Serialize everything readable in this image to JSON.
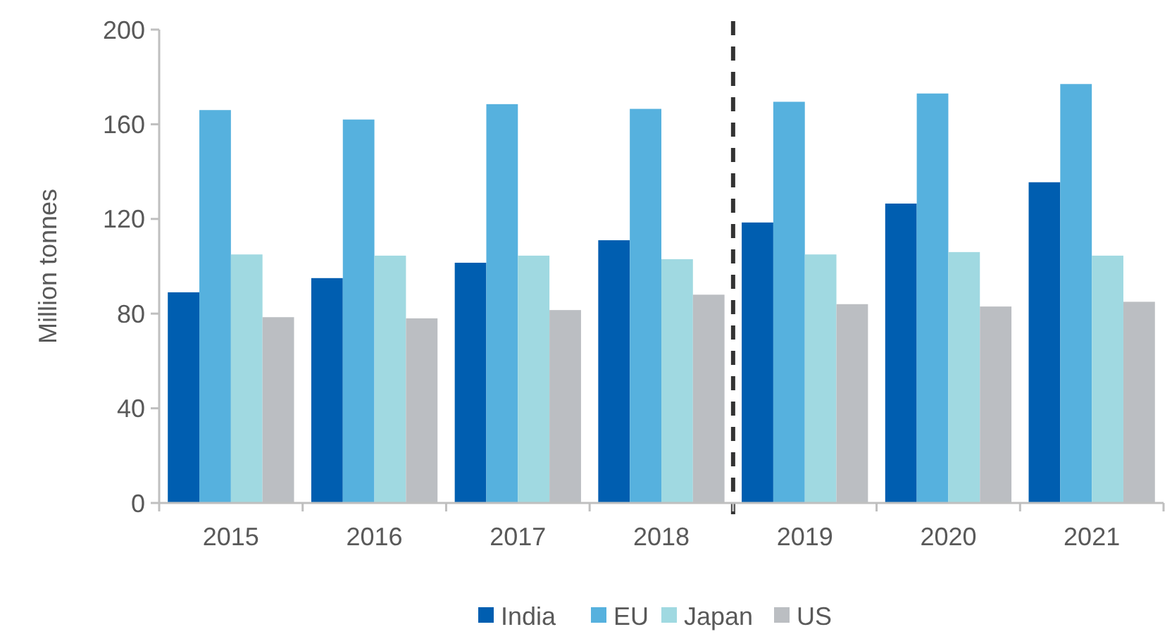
{
  "chart_data": {
    "type": "bar",
    "ylabel": "Million tonnes",
    "categories": [
      "2015",
      "2016",
      "2017",
      "2018",
      "2019",
      "2020",
      "2021"
    ],
    "series": [
      {
        "name": "India",
        "color": "#005eb0",
        "values": [
          89,
          95,
          101.5,
          111,
          118.5,
          126.5,
          135.5
        ]
      },
      {
        "name": "EU",
        "color": "#56b1de",
        "values": [
          166,
          162,
          168.5,
          166.5,
          169.5,
          173,
          177
        ]
      },
      {
        "name": "Japan",
        "color": "#a0d9e1",
        "values": [
          105,
          104.5,
          104.5,
          103,
          105,
          106,
          104.5
        ]
      },
      {
        "name": "US",
        "color": "#bbbec2",
        "values": [
          78.5,
          78,
          81.5,
          88,
          84,
          83,
          85
        ]
      }
    ],
    "ylim": [
      0,
      200
    ],
    "yticks": [
      0,
      40,
      80,
      120,
      160,
      200
    ],
    "grid": false,
    "legend": "bottom"
  }
}
